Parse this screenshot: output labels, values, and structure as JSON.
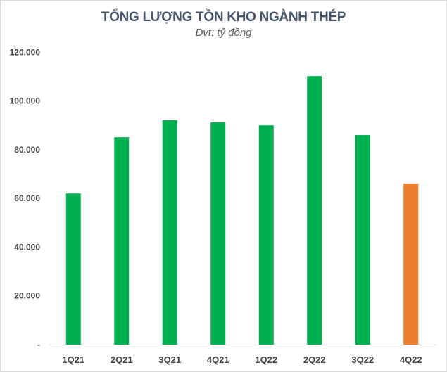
{
  "chart_data": {
    "type": "bar",
    "title": "TỔNG LƯỢNG TỒN KHO NGÀNH THÉP",
    "subtitle": "Đvt: tỷ đồng",
    "categories": [
      "1Q21",
      "2Q21",
      "3Q21",
      "4Q21",
      "1Q22",
      "2Q22",
      "3Q22",
      "4Q22"
    ],
    "values": [
      62000,
      85100,
      92100,
      91200,
      90000,
      110200,
      86000,
      66100
    ],
    "bar_colors": [
      "#00b050",
      "#00b050",
      "#00b050",
      "#00b050",
      "#00b050",
      "#00b050",
      "#00b050",
      "#ed7d31"
    ],
    "ylim": [
      0,
      120000
    ],
    "yticks": [
      0,
      20000,
      40000,
      60000,
      80000,
      100000,
      120000
    ],
    "ytick_labels": [
      "-",
      "20.000",
      "40.000",
      "60.000",
      "80.000",
      "100.000",
      "120.000"
    ],
    "grid": false,
    "legend": "none"
  }
}
